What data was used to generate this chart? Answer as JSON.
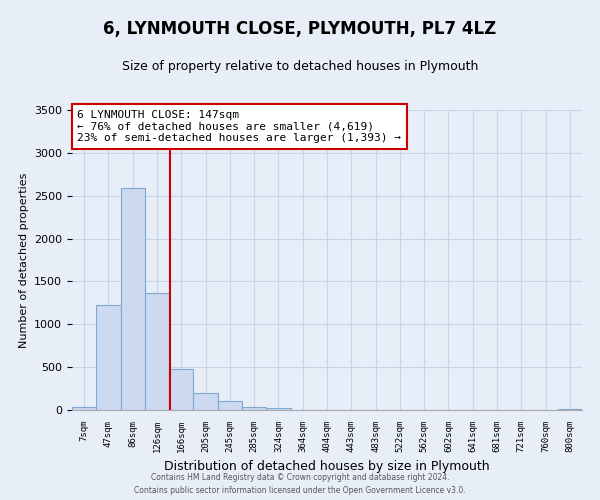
{
  "title": "6, LYNMOUTH CLOSE, PLYMOUTH, PL7 4LZ",
  "subtitle": "Size of property relative to detached houses in Plymouth",
  "xlabel": "Distribution of detached houses by size in Plymouth",
  "ylabel": "Number of detached properties",
  "bar_labels": [
    "7sqm",
    "47sqm",
    "86sqm",
    "126sqm",
    "166sqm",
    "205sqm",
    "245sqm",
    "285sqm",
    "324sqm",
    "364sqm",
    "404sqm",
    "443sqm",
    "483sqm",
    "522sqm",
    "562sqm",
    "602sqm",
    "641sqm",
    "681sqm",
    "721sqm",
    "760sqm",
    "800sqm"
  ],
  "bar_values": [
    40,
    1230,
    2590,
    1360,
    480,
    195,
    105,
    40,
    25,
    5,
    2,
    0,
    0,
    0,
    0,
    0,
    0,
    0,
    0,
    0,
    8
  ],
  "bar_color": "#cdd9ee",
  "bar_edge_color": "#7da8d4",
  "vline_color": "#cc0000",
  "ylim": [
    0,
    3500
  ],
  "annotation_text": "6 LYNMOUTH CLOSE: 147sqm\n← 76% of detached houses are smaller (4,619)\n23% of semi-detached houses are larger (1,393) →",
  "annotation_box_color": "#ffffff",
  "annotation_box_edge": "#cc0000",
  "footer_line1": "Contains HM Land Registry data © Crown copyright and database right 2024.",
  "footer_line2": "Contains public sector information licensed under the Open Government Licence v3.0.",
  "background_color": "#e8eef8",
  "grid_color": "#c8d4e8",
  "title_fontsize": 12,
  "subtitle_fontsize": 9,
  "ylabel_fontsize": 8,
  "xlabel_fontsize": 9
}
